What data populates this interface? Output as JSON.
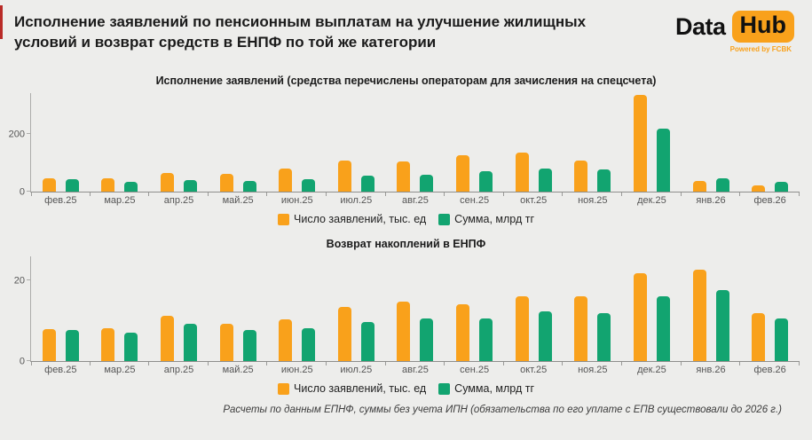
{
  "header": {
    "title": "Исполнение заявлений по пенсионным выплатам на улучшение жилищных условий и возврат средств в ЕНПФ по той же категории",
    "logo": {
      "part1": "Data",
      "part2": "Hub",
      "subtitle": "Powered by FCBK"
    }
  },
  "colors": {
    "orange": "#F9A11B",
    "green": "#12A470",
    "background": "#EDEDEB",
    "accent_red": "#B92B27"
  },
  "chart_data": [
    {
      "type": "bar",
      "title": "Исполнение заявлений (средства перечислены операторам для зачисления на спецсчета)",
      "categories": [
        "фев.25",
        "мар.25",
        "апр.25",
        "май.25",
        "июн.25",
        "июл.25",
        "авг.25",
        "сен.25",
        "окт.25",
        "ноя.25",
        "дек.25",
        "янв.26",
        "фев.26"
      ],
      "series": [
        {
          "name": "Число заявлений, тыс. ед",
          "color": "#F9A11B",
          "values": [
            46,
            46,
            65,
            60,
            79,
            107,
            104,
            127,
            134,
            108,
            335,
            36,
            22
          ]
        },
        {
          "name": "Сумма, млрд тг",
          "color": "#12A470",
          "values": [
            44,
            35,
            40,
            38,
            42,
            55,
            58,
            69,
            79,
            78,
            218,
            47,
            35
          ]
        }
      ],
      "xlabel": "",
      "ylabel": "",
      "ylim": [
        0,
        340
      ],
      "yticks": [
        0,
        200
      ],
      "grid": false,
      "legend_position": "bottom"
    },
    {
      "type": "bar",
      "title": "Возврат накоплений в ЕНПФ",
      "categories": [
        "фев.25",
        "мар.25",
        "апр.25",
        "май.25",
        "июн.25",
        "июл.25",
        "авг.25",
        "сен.25",
        "окт.25",
        "ноя.25",
        "дек.25",
        "янв.26",
        "фев.26"
      ],
      "series": [
        {
          "name": "Число заявлений, тыс. ед",
          "color": "#F9A11B",
          "values": [
            8.0,
            8.1,
            11.3,
            9.3,
            10.4,
            13.5,
            14.8,
            14.1,
            16.1,
            16.0,
            21.8,
            22.7,
            11.9
          ]
        },
        {
          "name": "Сумма, млрд тг",
          "color": "#12A470",
          "values": [
            7.8,
            7.0,
            9.2,
            7.8,
            8.1,
            9.7,
            10.6,
            10.6,
            12.4,
            12.0,
            16.0,
            17.6,
            10.6
          ]
        }
      ],
      "xlabel": "",
      "ylabel": "",
      "ylim": [
        0,
        26
      ],
      "yticks": [
        0,
        20
      ],
      "grid": false,
      "legend_position": "bottom"
    }
  ],
  "footer": {
    "note": "Расчеты по данным ЕПНФ, суммы без учета ИПН (обязательства по его уплате с ЕПВ существовали до 2026 г.)"
  }
}
